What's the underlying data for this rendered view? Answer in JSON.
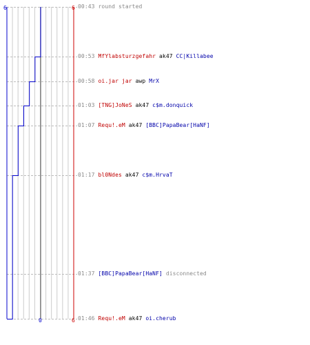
{
  "chart_data": {
    "type": "line",
    "title": "",
    "xlabel": "",
    "ylabel": "",
    "team_a_start": "6",
    "team_b_start": "6",
    "team_a_end": "0",
    "team_b_end": "6",
    "team_a_color": "#0000cc",
    "team_b_color": "#cc0000",
    "series": [
      {
        "x": [
          "00:43",
          "00:53",
          "00:58",
          "01:03",
          "01:07",
          "01:17",
          "01:37",
          "01:46"
        ],
        "values": [
          6,
          5,
          4,
          3,
          2,
          1,
          1,
          0
        ]
      }
    ]
  },
  "events": [
    {
      "time": "00:43",
      "parts": [
        {
          "text": "round started",
          "style": "gray"
        }
      ]
    },
    {
      "time": "00:53",
      "parts": [
        {
          "text": "MfYlabsturzgefahr",
          "style": "red"
        },
        {
          "text": " ak47 ",
          "style": "black"
        },
        {
          "text": "CC|Killabee",
          "style": "blue"
        }
      ]
    },
    {
      "time": "00:58",
      "parts": [
        {
          "text": "oi.jar jar",
          "style": "red"
        },
        {
          "text": " awp ",
          "style": "black"
        },
        {
          "text": "MrX",
          "style": "blue"
        }
      ]
    },
    {
      "time": "01:03",
      "parts": [
        {
          "text": "[TNG]JoNeS",
          "style": "red"
        },
        {
          "text": " ak47 ",
          "style": "black"
        },
        {
          "text": "c$m.donquick",
          "style": "blue"
        }
      ]
    },
    {
      "time": "01:07",
      "parts": [
        {
          "text": "Requ!.eM",
          "style": "red"
        },
        {
          "text": " ak47 ",
          "style": "black"
        },
        {
          "text": "[BBC]PapaBear[HaNF]",
          "style": "blue"
        }
      ]
    },
    {
      "time": "01:17",
      "parts": [
        {
          "text": "bl0Ndes",
          "style": "red"
        },
        {
          "text": " ak47 ",
          "style": "black"
        },
        {
          "text": "c$m.HrvaT",
          "style": "blue"
        }
      ]
    },
    {
      "time": "01:37",
      "parts": [
        {
          "text": "[BBC]PapaBear[HaNF]",
          "style": "blue"
        },
        {
          "text": " disconnected",
          "style": "gray"
        }
      ]
    },
    {
      "time": "01:46",
      "parts": [
        {
          "text": "Requ!.eM",
          "style": "red"
        },
        {
          "text": " ak47 ",
          "style": "black"
        },
        {
          "text": "oi.cherub",
          "style": "blue"
        }
      ]
    }
  ]
}
